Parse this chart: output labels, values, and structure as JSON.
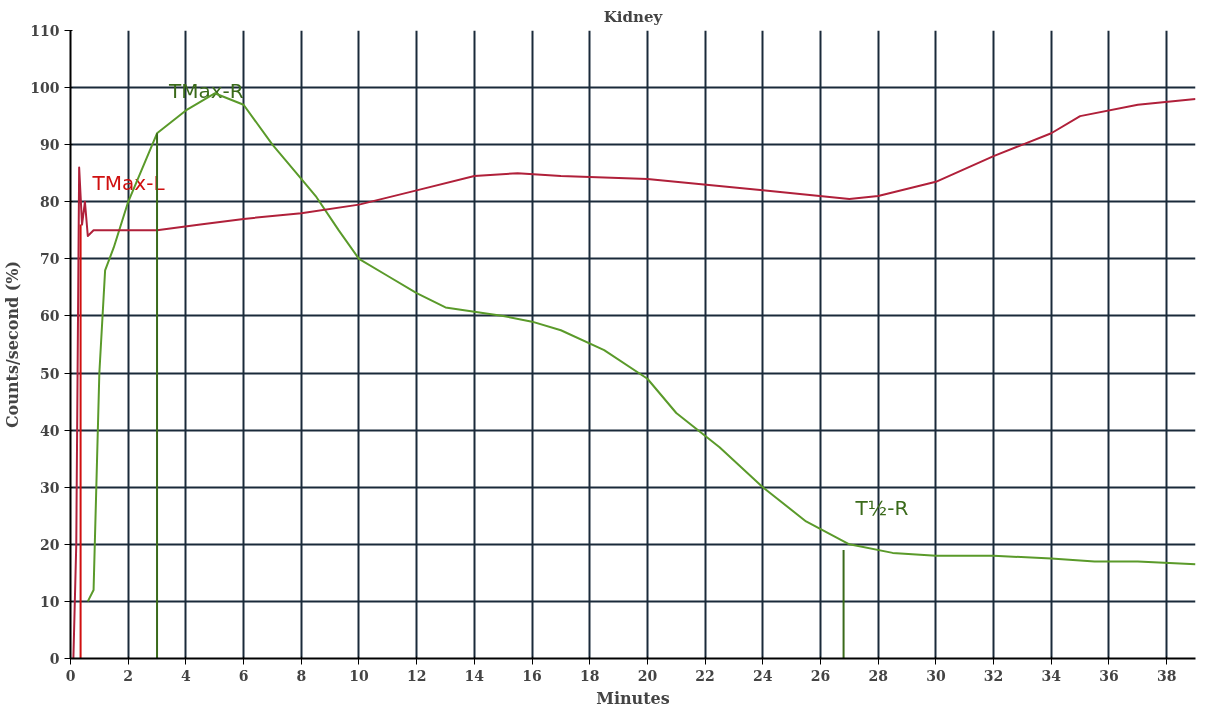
{
  "chart_data": {
    "type": "line",
    "title": "Kidney",
    "xlabel": "Minutes",
    "ylabel": "Counts/second (%)",
    "xlim": [
      0,
      39
    ],
    "ylim": [
      0,
      110
    ],
    "xticks": [
      0,
      2,
      4,
      6,
      8,
      10,
      12,
      14,
      16,
      18,
      20,
      22,
      24,
      26,
      28,
      30,
      32,
      34,
      36,
      38
    ],
    "yticks": [
      0,
      10,
      20,
      30,
      40,
      50,
      60,
      70,
      80,
      90,
      100,
      110
    ],
    "grid": true,
    "line_style": "solid",
    "series": [
      {
        "color": "#5a9a2a",
        "x": [
          0.6,
          0.8,
          1.0,
          1.2,
          1.5,
          2,
          2.5,
          3,
          4,
          5,
          6,
          7,
          8,
          8.5,
          9.3,
          10,
          11,
          12,
          13,
          15,
          16,
          17,
          18.5,
          20,
          21,
          22.5,
          24,
          25.5,
          27,
          28.5,
          30,
          32,
          34,
          35.5,
          37,
          39
        ],
        "values": [
          10,
          12,
          50,
          68,
          72,
          80,
          86,
          92,
          96,
          99,
          97,
          90,
          84,
          81,
          75,
          70,
          67,
          64,
          61.5,
          60,
          59,
          57.5,
          54,
          49,
          43,
          37,
          30,
          24,
          20,
          18.5,
          18,
          18,
          17.5,
          17,
          17,
          16.5
        ]
      },
      {
        "color": "#b0203a",
        "x": [
          0.1,
          0.2,
          0.3,
          0.4,
          0.5,
          0.6,
          0.8,
          1.5,
          3,
          4.5,
          6,
          8,
          10,
          12,
          14,
          15.5,
          17,
          20,
          24,
          27,
          28,
          30,
          32,
          34,
          35,
          37,
          39
        ],
        "values": [
          0,
          20,
          86,
          76,
          80,
          74,
          75,
          75,
          75,
          76,
          77,
          78,
          79.5,
          82,
          84.5,
          85,
          84.5,
          84,
          82,
          80.5,
          81,
          83.5,
          88,
          92,
          95,
          97,
          98
        ]
      },
      {
        "color": "#d01010",
        "x": [
          0.35,
          0.35
        ],
        "values": [
          0,
          76
        ]
      },
      {
        "color": "#3a6a1a",
        "x": [
          3,
          3
        ],
        "values": [
          0,
          92
        ]
      },
      {
        "color": "#3a6a1a",
        "x": [
          26.8,
          26.8
        ],
        "values": [
          0,
          19
        ]
      }
    ],
    "annotations": [
      {
        "text": "TMax-L",
        "x": 0.35,
        "y": 76
      },
      {
        "text": "TMax-R",
        "x": 3,
        "y": 92
      },
      {
        "text": "T½-R",
        "x": 26.8,
        "y": 19
      }
    ]
  }
}
